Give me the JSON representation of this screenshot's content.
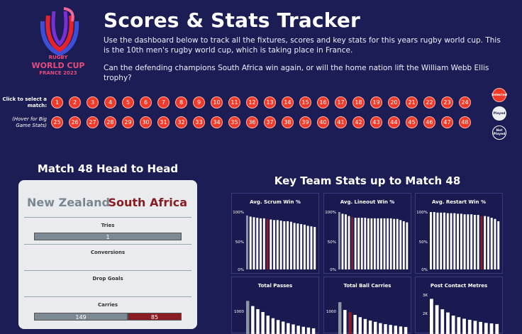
{
  "logo": {
    "line1": "RUGBY",
    "line2": "WORLD CUP",
    "line3": "FRANCE 2023"
  },
  "header": {
    "title": "Scores & Stats Tracker",
    "intro1": "Use the dashboard below to track all the fixtures, scores and key stats for this years rugby world cup. This is the 10th men's rugby world cup, which is taking place in France.",
    "intro2": "Can the defending champions South Africa win again, or will the home nation lift the William Webb Ellis trophy?"
  },
  "match_selector": {
    "label": "Click to select a match:",
    "hover_hint": "(Hover for Big Game Stats)",
    "row1": [
      "1",
      "2",
      "3",
      "4",
      "5",
      "6",
      "7",
      "8",
      "9",
      "10",
      "11",
      "12",
      "13",
      "14",
      "15",
      "16",
      "17",
      "18",
      "19",
      "20",
      "21",
      "22",
      "23",
      "24"
    ],
    "row2": [
      "25",
      "26",
      "27",
      "28",
      "29",
      "30",
      "31",
      "32",
      "33",
      "34",
      "35",
      "36",
      "37",
      "38",
      "39",
      "40",
      "41",
      "42",
      "43",
      "44",
      "45",
      "46",
      "47",
      "48"
    ],
    "legend": {
      "selected": "Selected",
      "played": "Played",
      "not_played": "Not Played"
    }
  },
  "head_to_head": {
    "title": "Match 48 Head to Head",
    "team_left": "New Zealand",
    "team_right": "South Africa",
    "stats": [
      {
        "label": "Tries",
        "left": "1",
        "right": ""
      },
      {
        "label": "Conversions",
        "left": "",
        "right": ""
      },
      {
        "label": "Drop Goals",
        "left": "",
        "right": ""
      },
      {
        "label": "Carries",
        "left": "149",
        "right": "85"
      }
    ]
  },
  "key_stats": {
    "title": "Key Team Stats up to Match 48",
    "panels": [
      {
        "title": "Avg. Scrum Win %",
        "ticks": [
          "100%",
          "50%",
          "0%"
        ]
      },
      {
        "title": "Avg. Lineout Win %",
        "ticks": [
          "100%",
          "50%",
          "0%"
        ]
      },
      {
        "title": "Avg. Restart Win %",
        "ticks": [
          "100%",
          "50%",
          "0%"
        ]
      },
      {
        "title": "Total Passes",
        "ticks": [
          "1000"
        ]
      },
      {
        "title": "Total Ball Carries",
        "ticks": [
          "1000"
        ]
      },
      {
        "title": "Post Contact Metres",
        "ticks": [
          "3K",
          "2K"
        ]
      }
    ]
  },
  "chart_data": [
    {
      "type": "bar",
      "title": "Avg. Scrum Win %",
      "ylim": [
        0,
        100
      ],
      "values": [
        94,
        92,
        91,
        90,
        89,
        89,
        88,
        87,
        86,
        86,
        85,
        84,
        84,
        83,
        81,
        80,
        79,
        78,
        76,
        75,
        74
      ],
      "highlight": {
        "grey": 0,
        "red": 6
      }
    },
    {
      "type": "bar",
      "title": "Avg. Lineout Win %",
      "ylim": [
        0,
        100
      ],
      "values": [
        100,
        97,
        96,
        93,
        91,
        90,
        90,
        90,
        90,
        89,
        89,
        89,
        89,
        89,
        89,
        89,
        89,
        88,
        88,
        86,
        84,
        82
      ],
      "highlight": {
        "grey": 0,
        "red": 4
      }
    },
    {
      "type": "bar",
      "title": "Avg. Restart Win %",
      "ylim": [
        0,
        100
      ],
      "values": [
        100,
        100,
        99,
        99,
        99,
        98,
        98,
        98,
        97,
        97,
        96,
        96,
        96,
        95,
        95,
        93,
        93,
        92,
        90,
        88,
        84
      ],
      "highlight": {
        "grey": null,
        "red": 15
      }
    },
    {
      "type": "bar",
      "title": "Total Passes",
      "ylim": [
        0,
        1700
      ],
      "values": [
        1500,
        1300,
        1180,
        1070,
        930,
        830,
        760,
        700,
        640,
        590,
        540,
        500,
        470,
        440
      ],
      "highlight": {
        "grey": 0,
        "red": null
      }
    },
    {
      "type": "bar",
      "title": "Total Ball Carries",
      "ylim": [
        0,
        1700
      ],
      "values": [
        1450,
        1150,
        1060,
        960,
        870,
        800,
        740,
        690,
        640,
        600,
        570,
        540,
        510,
        490
      ],
      "highlight": {
        "grey": 0,
        "red": 2
      }
    },
    {
      "type": "bar",
      "title": "Post Contact Metres",
      "ylim": [
        0,
        4200
      ],
      "values": [
        3900,
        3300,
        2900,
        2600,
        2300,
        2150,
        2000,
        1900,
        1800,
        1700,
        1600,
        1550,
        1500
      ],
      "highlight": {
        "grey": null,
        "red": null
      }
    }
  ],
  "colors": {
    "background": "#1d1d55",
    "match_button": "#f13a2a",
    "nz": "#7d8a94",
    "sa": "#8a1c24",
    "bar": "#ffffff"
  }
}
